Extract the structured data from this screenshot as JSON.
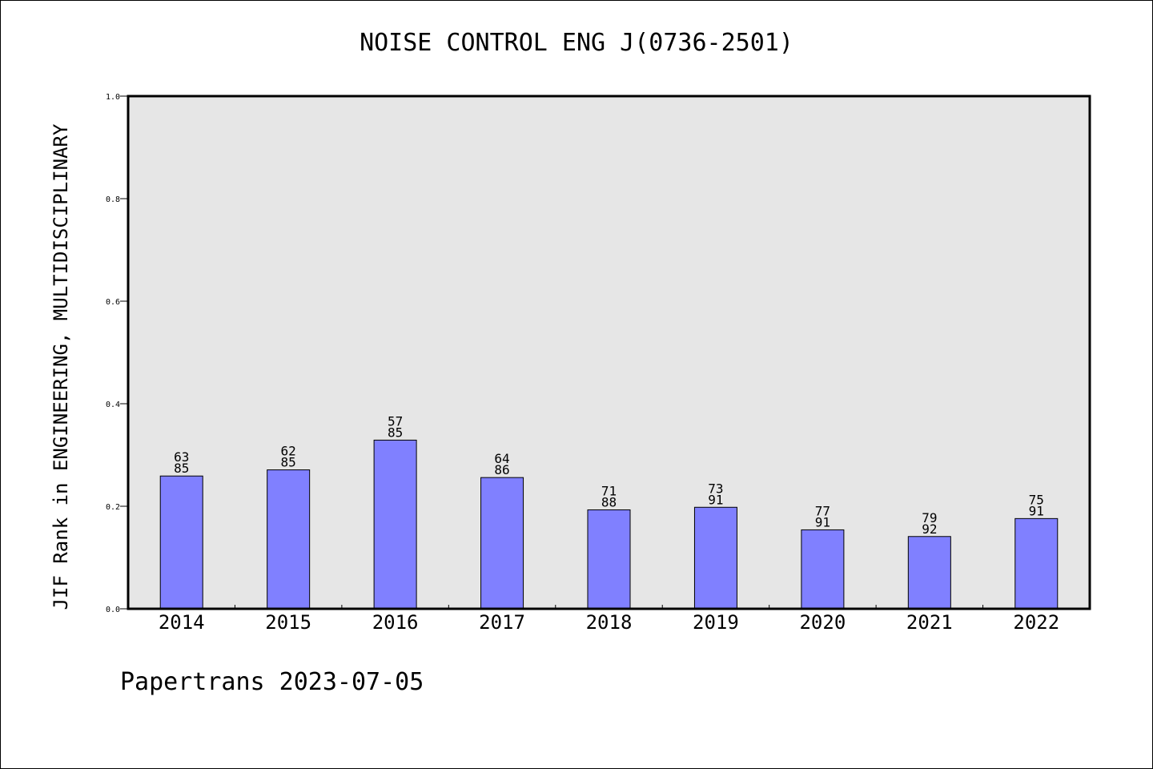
{
  "title": "NOISE CONTROL ENG J(0736-2501)",
  "footer": "Papertrans 2023-07-05",
  "colors": {
    "bar": "#8080ff",
    "plot_bg": "#e6e6e6",
    "axis": "#000000"
  },
  "chart_data": {
    "type": "bar",
    "title": "NOISE CONTROL ENG J(0736-2501)",
    "xlabel": "",
    "ylabel": "JIF Rank in ENGINEERING, MULTIDISCIPLINARY",
    "ylim": [
      0,
      1.0
    ],
    "yticks": [
      "0.0",
      "0.2",
      "0.4",
      "0.6",
      "0.8",
      "1.0"
    ],
    "grid": false,
    "categories": [
      "2014",
      "2015",
      "2016",
      "2017",
      "2018",
      "2019",
      "2020",
      "2021",
      "2022"
    ],
    "values": [
      0.259,
      0.271,
      0.329,
      0.256,
      0.193,
      0.198,
      0.154,
      0.141,
      0.176
    ],
    "rank": [
      "63",
      "62",
      "57",
      "64",
      "71",
      "73",
      "77",
      "79",
      "75"
    ],
    "total": [
      "85",
      "85",
      "85",
      "86",
      "88",
      "91",
      "91",
      "92",
      "91"
    ]
  }
}
